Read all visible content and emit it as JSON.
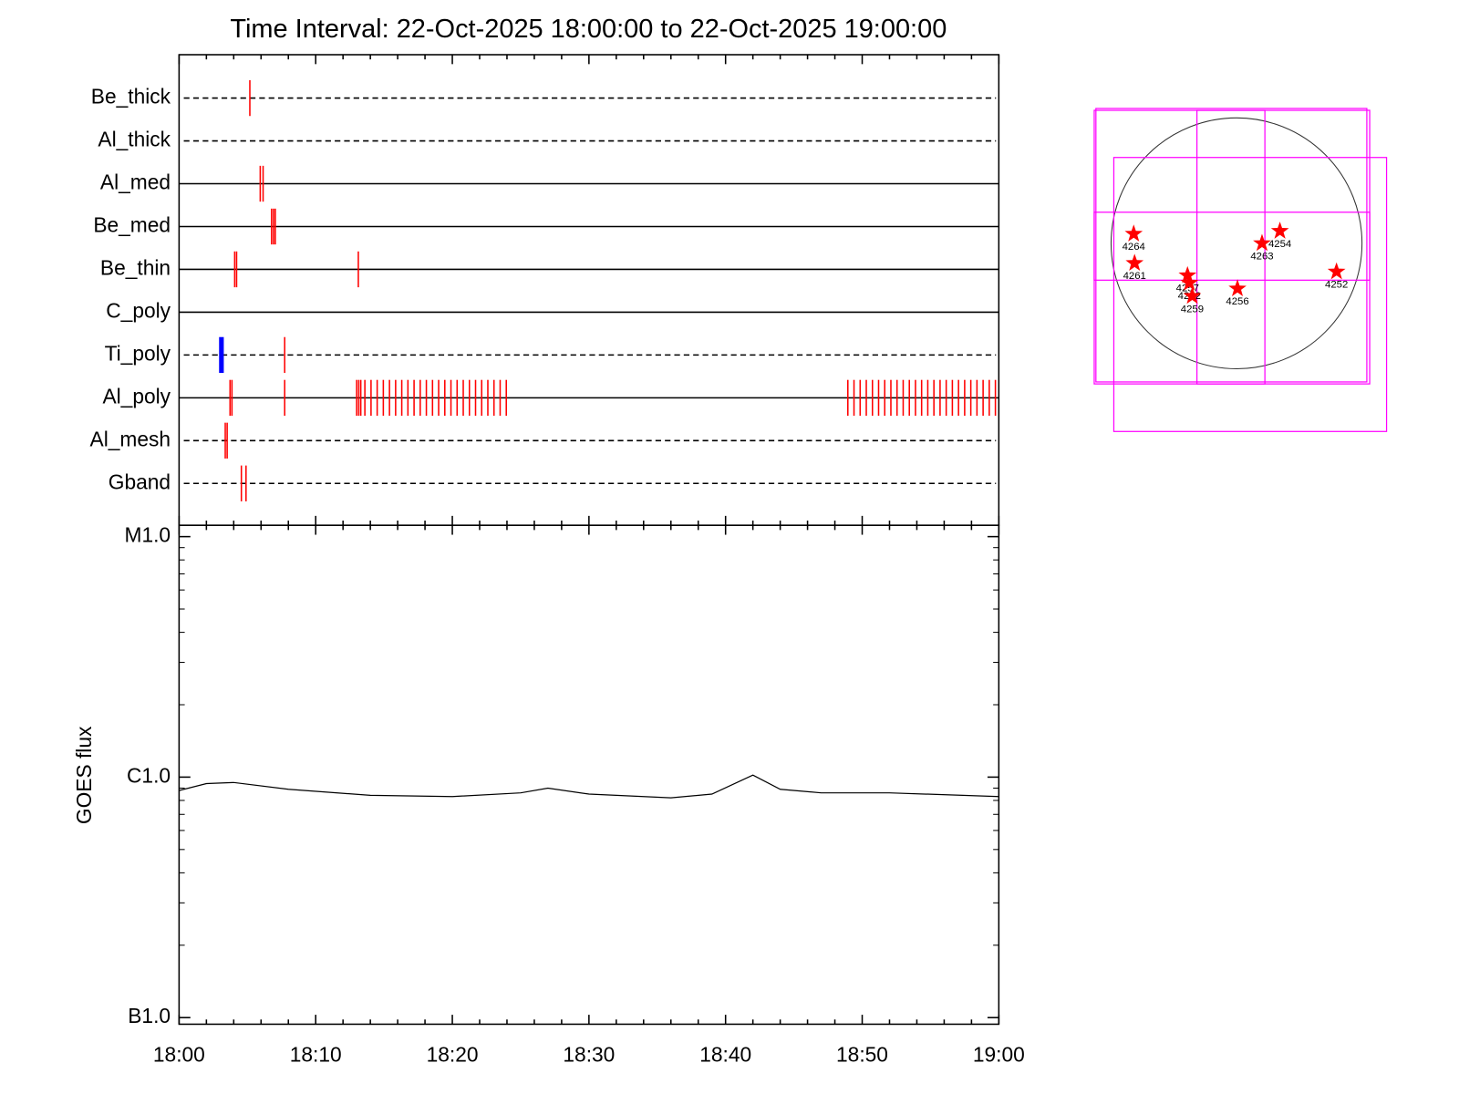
{
  "chart_data": [
    {
      "type": "timeline",
      "title": "Time Interval: 22-Oct-2025 18:00:00 to 22-Oct-2025 19:00:00",
      "xlim": [
        0,
        60
      ],
      "xticks": [
        {
          "value": 0,
          "label": "18:00"
        },
        {
          "value": 10,
          "label": "18:10"
        },
        {
          "value": 20,
          "label": "18:20"
        },
        {
          "value": 30,
          "label": "18:30"
        },
        {
          "value": 40,
          "label": "18:40"
        },
        {
          "value": 50,
          "label": "18:50"
        },
        {
          "value": 60,
          "label": "19:00"
        }
      ],
      "x_minor_ticks": [
        2,
        4,
        6,
        8,
        12,
        14,
        16,
        18,
        22,
        24,
        26,
        28,
        32,
        34,
        36,
        38,
        42,
        44,
        46,
        48,
        52,
        54,
        56,
        58
      ],
      "color": "#ff0000",
      "rows": [
        {
          "name": "Be_thick",
          "line": "dashed",
          "values": [
            5.18
          ]
        },
        {
          "name": "Al_thick",
          "line": "dashed",
          "values": []
        },
        {
          "name": "Al_med",
          "line": "solid",
          "values": [
            5.94,
            6.15
          ]
        },
        {
          "name": "Be_med",
          "line": "solid",
          "values": [
            6.77,
            6.91,
            7.04
          ]
        },
        {
          "name": "Be_thin",
          "line": "solid",
          "values": [
            4.07,
            4.21,
            13.12
          ]
        },
        {
          "name": "C_poly",
          "line": "solid",
          "values": []
        },
        {
          "name": "Ti_poly",
          "line": "dashed",
          "values": [
            3.1,
            7.73
          ],
          "colors": [
            "#0000ff",
            "#ff0000"
          ]
        },
        {
          "name": "Al_poly",
          "line": "solid",
          "values": [
            3.73,
            3.87,
            7.73,
            13.0,
            13.15,
            13.3,
            13.6,
            14.05,
            14.5,
            14.95,
            15.4,
            15.85,
            16.3,
            16.75,
            17.2,
            17.65,
            18.1,
            18.55,
            19.0,
            19.45,
            19.9,
            20.35,
            20.8,
            21.25,
            21.7,
            22.15,
            22.6,
            23.05,
            23.5,
            23.95,
            48.95,
            49.4,
            49.85,
            50.3,
            50.75,
            51.2,
            51.65,
            52.1,
            52.55,
            53.0,
            53.45,
            53.9,
            54.35,
            54.8,
            55.25,
            55.7,
            56.15,
            56.6,
            57.05,
            57.5,
            57.95,
            58.4,
            58.85,
            59.3,
            59.75
          ]
        },
        {
          "name": "Al_mesh",
          "line": "dashed",
          "values": [
            3.38,
            3.52
          ]
        },
        {
          "name": "Gband",
          "line": "dashed",
          "values": [
            4.56,
            4.9
          ]
        }
      ]
    },
    {
      "type": "line",
      "y_label": "GOES flux",
      "log_y": true,
      "ylim": [
        1e-07,
        1e-05
      ],
      "yticks": [
        {
          "value": 1e-07,
          "label": "B1.0"
        },
        {
          "value": 1e-06,
          "label": "C1.0"
        },
        {
          "value": 1e-05,
          "label": "M1.0"
        }
      ],
      "y_minor_ticks": [
        2e-07,
        3e-07,
        4e-07,
        5e-07,
        6e-07,
        7e-07,
        8e-07,
        9e-07,
        2e-06,
        3e-06,
        4e-06,
        5e-06,
        6e-06,
        7e-06,
        8e-06,
        9e-06
      ],
      "color": "#000000",
      "x": [
        0,
        2,
        4,
        8,
        14,
        20,
        25,
        27,
        30,
        36,
        39,
        42,
        44,
        47,
        52,
        60
      ],
      "values": [
        8.8e-07,
        9.4e-07,
        9.5e-07,
        8.9e-07,
        8.4e-07,
        8.3e-07,
        8.6e-07,
        9e-07,
        8.5e-07,
        8.2e-07,
        8.5e-07,
        1.02e-06,
        8.9e-07,
        8.6e-07,
        8.6e-07,
        8.3e-07
      ]
    },
    {
      "type": "map",
      "solar_radius": 960,
      "box_color": "#ff00ff",
      "color": "#ff0000",
      "boxes": [
        [
          -1089,
          1018,
          1019,
          -1076
        ],
        [
          -1076,
          1032,
          997,
          -1061
        ],
        [
          -939,
          657,
          1148,
          -1440
        ],
        [
          -303,
          1018,
          217,
          -1076
        ],
        [
          -1089,
          238,
          1019,
          -282
        ]
      ],
      "points": [
        {
          "label": "4264",
          "x": -787,
          "y": 72
        },
        {
          "label": "4261",
          "x": -780,
          "y": -152
        },
        {
          "label": "4257",
          "x": -375,
          "y": -246
        },
        {
          "label": "4262",
          "x": -361,
          "y": -303
        },
        {
          "label": "4259",
          "x": -339,
          "y": -404
        },
        {
          "label": "4256",
          "x": 7,
          "y": -347
        },
        {
          "label": "4263",
          "x": 195,
          "y": 0
        },
        {
          "label": "4254",
          "x": 332,
          "y": 94
        },
        {
          "label": "4252",
          "x": 765,
          "y": -217
        }
      ]
    }
  ]
}
